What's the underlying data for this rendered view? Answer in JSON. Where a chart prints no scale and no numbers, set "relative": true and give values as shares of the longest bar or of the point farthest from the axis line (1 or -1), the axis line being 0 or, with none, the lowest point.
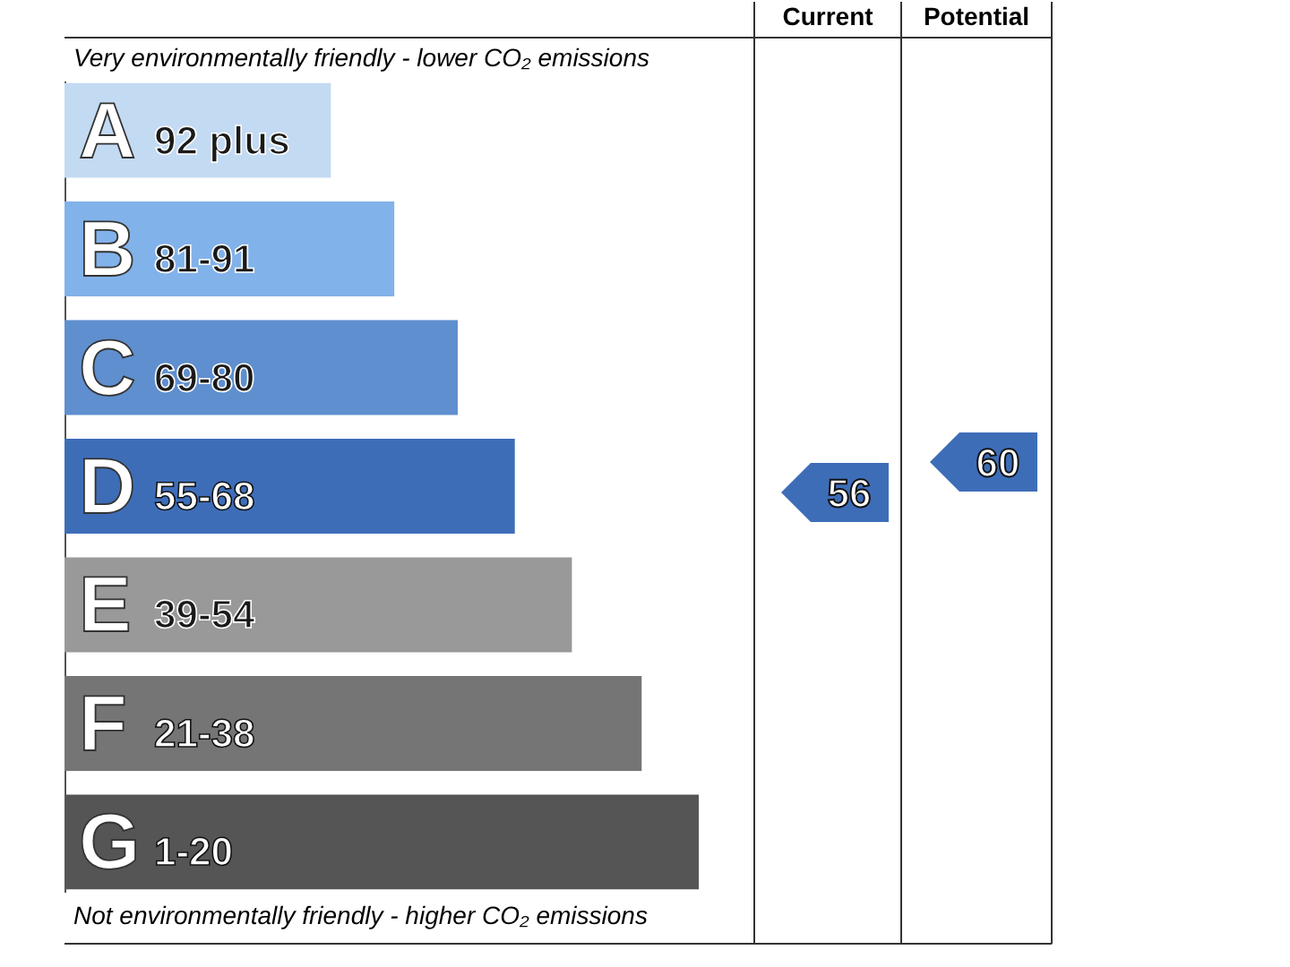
{
  "chart_data": {
    "type": "bar",
    "orientation": "horizontal",
    "relative": true,
    "categories": [
      "A 92 plus",
      "B 81-91",
      "C 69-80",
      "D 55-68",
      "E 39-54",
      "F 21-38",
      "G 1-20"
    ],
    "values": [
      0.42,
      0.52,
      0.62,
      0.71,
      0.8,
      0.91,
      1
    ],
    "colors": [
      "#c3daf3",
      "#82b2ea",
      "#5f8fcf",
      "#3e6db8",
      "#999999",
      "#757575",
      "#555555"
    ],
    "annotations": [
      "Very environmentally friendly - lower CO₂ emissions",
      "Not environmentally friendly - higher CO₂ emissions",
      "Current",
      "Potential",
      "56",
      "60"
    ]
  }
}
